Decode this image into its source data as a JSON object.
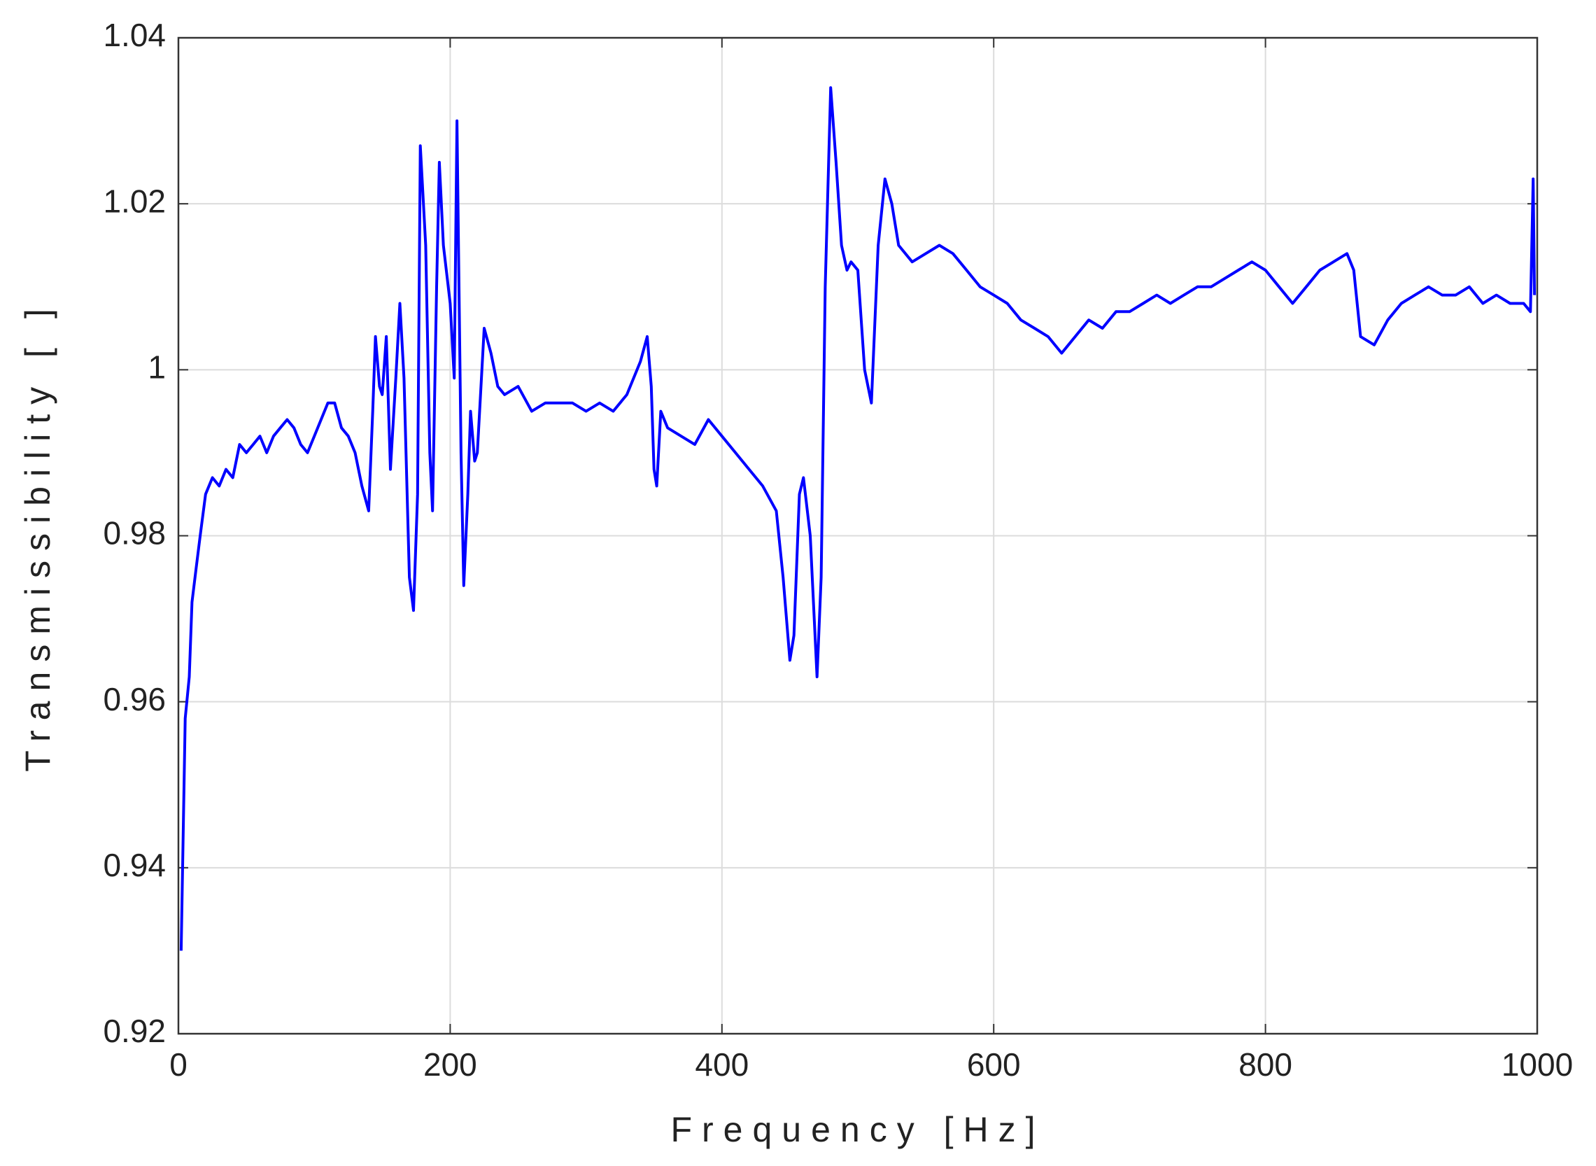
{
  "chart_data": {
    "type": "line",
    "xlabel": "Frequency [Hz]",
    "ylabel": "Transmissibility [ ]",
    "xlim": [
      0,
      1000
    ],
    "ylim": [
      0.92,
      1.04
    ],
    "xticks": [
      0,
      200,
      400,
      600,
      800,
      1000
    ],
    "yticks": [
      0.92,
      0.94,
      0.96,
      0.98,
      1,
      1.02,
      1.04
    ],
    "grid": true,
    "series": [
      {
        "color": "#0000ff",
        "x": [
          2,
          5,
          8,
          10,
          13,
          16,
          20,
          25,
          30,
          35,
          40,
          45,
          50,
          55,
          60,
          65,
          70,
          75,
          80,
          85,
          90,
          95,
          100,
          105,
          110,
          115,
          120,
          125,
          130,
          135,
          140,
          143,
          145,
          148,
          150,
          153,
          156,
          160,
          163,
          166,
          170,
          173,
          176,
          178,
          182,
          185,
          187,
          190,
          192,
          195,
          200,
          203,
          205,
          208,
          210,
          213,
          215,
          218,
          220,
          225,
          230,
          235,
          240,
          250,
          260,
          270,
          280,
          290,
          300,
          310,
          320,
          330,
          340,
          345,
          348,
          350,
          352,
          355,
          360,
          370,
          380,
          390,
          400,
          410,
          420,
          430,
          440,
          445,
          450,
          453,
          457,
          460,
          465,
          470,
          473,
          476,
          480,
          484,
          488,
          492,
          495,
          500,
          505,
          510,
          515,
          520,
          525,
          530,
          540,
          550,
          560,
          570,
          580,
          590,
          600,
          610,
          620,
          630,
          640,
          650,
          660,
          670,
          680,
          690,
          700,
          710,
          720,
          730,
          740,
          750,
          760,
          770,
          780,
          790,
          800,
          810,
          820,
          830,
          840,
          850,
          860,
          865,
          870,
          880,
          890,
          900,
          910,
          920,
          930,
          940,
          950,
          960,
          970,
          980,
          990,
          995,
          997,
          998
        ],
        "values": [
          0.93,
          0.958,
          0.963,
          0.972,
          0.976,
          0.98,
          0.985,
          0.987,
          0.986,
          0.988,
          0.987,
          0.991,
          0.99,
          0.991,
          0.992,
          0.99,
          0.992,
          0.993,
          0.994,
          0.993,
          0.991,
          0.99,
          0.992,
          0.994,
          0.996,
          0.996,
          0.993,
          0.992,
          0.99,
          0.986,
          0.983,
          0.995,
          1.004,
          0.998,
          0.997,
          1.004,
          0.988,
          0.999,
          1.008,
          0.999,
          0.975,
          0.971,
          0.985,
          1.027,
          1.015,
          0.99,
          0.983,
          1.01,
          1.025,
          1.015,
          1.008,
          0.999,
          1.03,
          0.99,
          0.974,
          0.985,
          0.995,
          0.989,
          0.99,
          1.005,
          1.002,
          0.998,
          0.997,
          0.998,
          0.995,
          0.996,
          0.996,
          0.996,
          0.995,
          0.996,
          0.995,
          0.997,
          1.001,
          1.004,
          0.998,
          0.988,
          0.986,
          0.995,
          0.993,
          0.992,
          0.991,
          0.994,
          0.992,
          0.99,
          0.988,
          0.986,
          0.983,
          0.975,
          0.965,
          0.968,
          0.985,
          0.987,
          0.98,
          0.963,
          0.975,
          1.01,
          1.034,
          1.025,
          1.015,
          1.012,
          1.013,
          1.012,
          1.0,
          0.996,
          1.015,
          1.023,
          1.02,
          1.015,
          1.013,
          1.014,
          1.015,
          1.014,
          1.012,
          1.01,
          1.009,
          1.008,
          1.006,
          1.005,
          1.004,
          1.002,
          1.004,
          1.006,
          1.005,
          1.007,
          1.007,
          1.008,
          1.009,
          1.008,
          1.009,
          1.01,
          1.01,
          1.011,
          1.012,
          1.013,
          1.012,
          1.01,
          1.008,
          1.01,
          1.012,
          1.013,
          1.014,
          1.012,
          1.004,
          1.003,
          1.006,
          1.008,
          1.009,
          1.01,
          1.009,
          1.009,
          1.01,
          1.008,
          1.009,
          1.008,
          1.008,
          1.007,
          1.023,
          1.009
        ]
      }
    ]
  }
}
